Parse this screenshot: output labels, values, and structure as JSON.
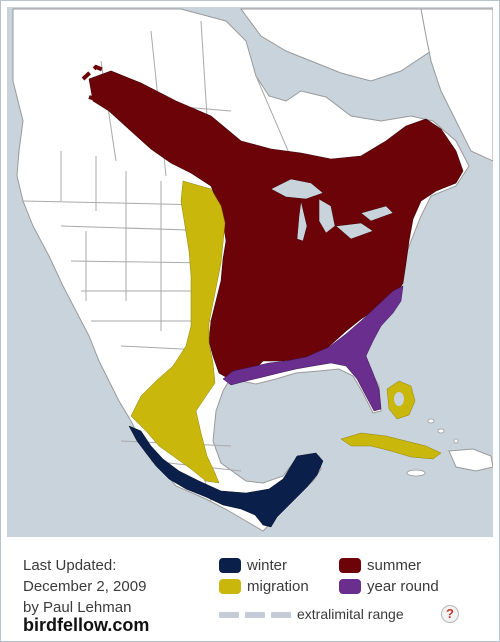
{
  "map": {
    "colors": {
      "land": "#ffffff",
      "water": "#c9d3dc",
      "border": "#a9a9a9",
      "winter": "#0b1f4b",
      "summer": "#6b0309",
      "migration": "#c9b70b",
      "year_round": "#6a2e8e"
    }
  },
  "legend": {
    "last_updated_label": "Last Updated:",
    "date": "December 2, 2009",
    "author": "by Paul Lehman",
    "brand": "birdfellow.com",
    "items": [
      {
        "label": "winter",
        "color": "#0b1f4b"
      },
      {
        "label": "summer",
        "color": "#6b0309"
      },
      {
        "label": "migration",
        "color": "#c9b70b"
      },
      {
        "label": "year round",
        "color": "#6a2e8e"
      }
    ],
    "extralimital_label": "extralimital range",
    "help_symbol": "?"
  }
}
